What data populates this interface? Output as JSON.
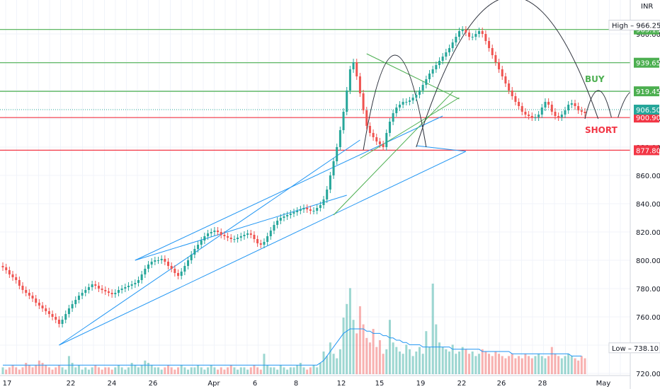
{
  "chart_data": {
    "type": "candlestick",
    "currency": "INR",
    "ylim": [
      715,
      1000
    ],
    "y_ticks": [
      720,
      740,
      760,
      780,
      800,
      820,
      840,
      860,
      880,
      900,
      920,
      940,
      960
    ],
    "x_labels": [
      "17",
      "22",
      "24",
      "26",
      "Apr",
      "6",
      "8",
      "12",
      "15",
      "19",
      "22",
      "26",
      "28",
      "May"
    ],
    "last_price": 906.5,
    "high": {
      "label": "High",
      "value": 966.25
    },
    "low": {
      "label": "Low",
      "value": 738.1
    },
    "levels": [
      {
        "value": 963.15,
        "color": "#4caf50"
      },
      {
        "value": 939.65,
        "color": "#4caf50"
      },
      {
        "value": 919.45,
        "color": "#4caf50"
      },
      {
        "value": 900.9,
        "color": "#f23645"
      },
      {
        "value": 877.8,
        "color": "#f23645"
      }
    ],
    "annotations": [
      {
        "text": "BUY",
        "color": "#4caf50",
        "price": 926
      },
      {
        "text": "SHORT",
        "color": "#f23645",
        "price": 890
      }
    ],
    "colors": {
      "up": "#26a69a",
      "down": "#ef5350",
      "channel": "#2196f3",
      "trend": "#4caf50",
      "pattern": "#2a2e39",
      "volume_ma": "#2196f3"
    },
    "closes": [
      795,
      793,
      790,
      788,
      786,
      782,
      779,
      777,
      775,
      773,
      770,
      768,
      766,
      764,
      762,
      760,
      758,
      755,
      758,
      762,
      766,
      769,
      772,
      775,
      777,
      779,
      781,
      783,
      782,
      780,
      779,
      778,
      777,
      776,
      777,
      779,
      780,
      781,
      782,
      783,
      784,
      786,
      790,
      794,
      797,
      799,
      800,
      800,
      801,
      799,
      796,
      794,
      791,
      789,
      792,
      796,
      800,
      804,
      808,
      811,
      814,
      817,
      819,
      820,
      821,
      820,
      818,
      817,
      816,
      815,
      815,
      816,
      817,
      818,
      819,
      818,
      815,
      812,
      811,
      813,
      817,
      821,
      825,
      828,
      830,
      831,
      832,
      833,
      834,
      835,
      836,
      837,
      836,
      835,
      835,
      837,
      839,
      843,
      850,
      860,
      870,
      880,
      892,
      905,
      920,
      935,
      940,
      930,
      918,
      906,
      895,
      890,
      887,
      884,
      882,
      880,
      890,
      898,
      904,
      908,
      910,
      912,
      912,
      913,
      915,
      917,
      920,
      924,
      928,
      932,
      935,
      938,
      941,
      944,
      947,
      950,
      954,
      958,
      962,
      963,
      961,
      958,
      958,
      960,
      962,
      960,
      955,
      950,
      945,
      940,
      935,
      930,
      925,
      920,
      916,
      912,
      909,
      905,
      903,
      902,
      901,
      901,
      903,
      908,
      912,
      910,
      905,
      902,
      901,
      903,
      906,
      910,
      911,
      909,
      906,
      905,
      904
    ],
    "volumes": [
      3,
      2,
      3,
      4,
      3,
      2,
      3,
      5,
      4,
      3,
      4,
      6,
      5,
      4,
      3,
      2,
      3,
      4,
      3,
      2,
      8,
      5,
      3,
      4,
      2,
      3,
      2,
      3,
      4,
      3,
      2,
      3,
      3,
      2,
      3,
      4,
      3,
      2,
      3,
      5,
      4,
      3,
      4,
      6,
      5,
      4,
      3,
      3,
      2,
      3,
      4,
      3,
      2,
      3,
      4,
      3,
      2,
      3,
      3,
      4,
      3,
      2,
      3,
      4,
      3,
      2,
      3,
      2,
      3,
      4,
      3,
      2,
      3,
      3,
      2,
      3,
      4,
      3,
      2,
      9,
      4,
      3,
      3,
      2,
      4,
      3,
      2,
      3,
      3,
      4,
      5,
      3,
      2,
      3,
      4,
      3,
      5,
      10,
      8,
      14,
      9,
      7,
      11,
      25,
      31,
      38,
      24,
      18,
      30,
      22,
      16,
      14,
      20,
      12,
      15,
      9,
      11,
      24,
      14,
      12,
      10,
      9,
      13,
      11,
      8,
      10,
      12,
      9,
      19,
      12,
      40,
      22,
      14,
      12,
      11,
      10,
      13,
      9,
      10,
      12,
      11,
      9,
      10,
      8,
      9,
      11,
      10,
      9,
      8,
      10,
      9,
      8,
      7,
      8,
      9,
      7,
      8,
      7,
      9,
      8,
      7,
      8,
      9,
      8,
      7,
      8,
      12,
      9,
      8,
      7,
      8,
      9,
      8,
      7,
      6,
      8,
      7
    ],
    "volume_ma": [
      4,
      4,
      4,
      4,
      4,
      4,
      4,
      4,
      4,
      4,
      4,
      4,
      4,
      4,
      4,
      4,
      4,
      4,
      4,
      4,
      4,
      4,
      4,
      4,
      4,
      4,
      4,
      4,
      4,
      4,
      4,
      4,
      4,
      4,
      4,
      4,
      4,
      4,
      4,
      4,
      4,
      4,
      4,
      4,
      4,
      4,
      4,
      4,
      4,
      4,
      4,
      4,
      4,
      4,
      4,
      4,
      4,
      4,
      4,
      4,
      4,
      4,
      4,
      4,
      4,
      4,
      4,
      4,
      4,
      4,
      4,
      4,
      4,
      4,
      4,
      4,
      4,
      4,
      4,
      4,
      4,
      4,
      4,
      4,
      4,
      4,
      4,
      4,
      4,
      4,
      4,
      4,
      4,
      4,
      4,
      4,
      5,
      6,
      8,
      10,
      12,
      14,
      16,
      18,
      19,
      20,
      20,
      20,
      20,
      20,
      19,
      19,
      18,
      18,
      18,
      17,
      17,
      16,
      16,
      15,
      15,
      14,
      14,
      13,
      13,
      13,
      13,
      12,
      12,
      12,
      12,
      12,
      12,
      12,
      12,
      12,
      11,
      11,
      11,
      11,
      11,
      11,
      11,
      11,
      11,
      10,
      10,
      10,
      10,
      10,
      10,
      10,
      10,
      10,
      9,
      9,
      9,
      9,
      9,
      9,
      9,
      9,
      9,
      9,
      9,
      9,
      9,
      9,
      9,
      9,
      9,
      9,
      8,
      8,
      8,
      8
    ]
  }
}
